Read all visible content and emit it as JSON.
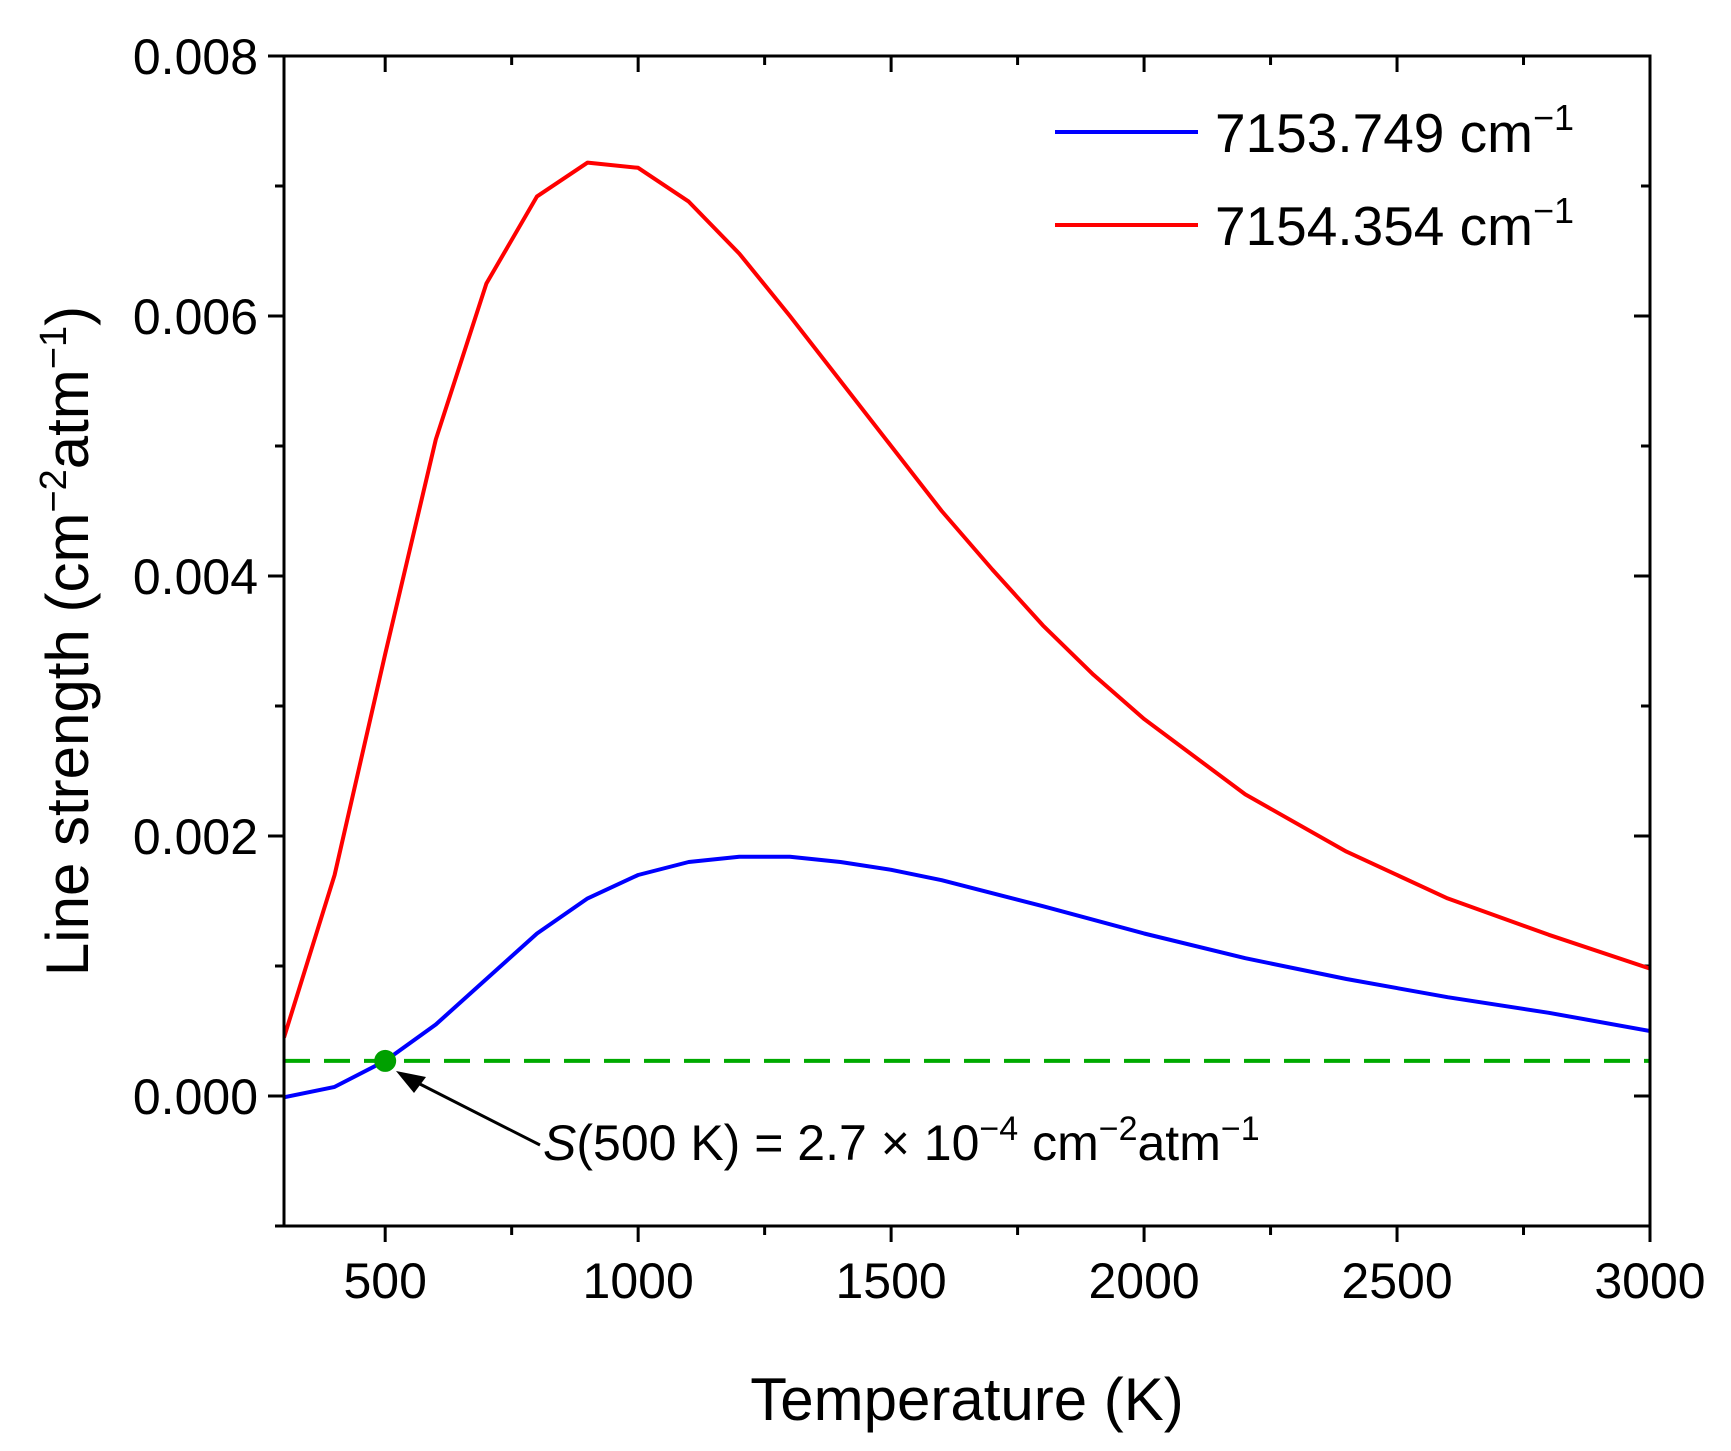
{
  "chart_data": {
    "type": "line",
    "title": "",
    "xlabel": "Temperature (K)",
    "ylabel": {
      "pre": "Line strength (cm",
      "sup1": "−2",
      "mid": "atm",
      "sup2": "−1",
      "post": ")"
    },
    "xlim": [
      300,
      3000
    ],
    "ylim": [
      -0.001,
      0.008
    ],
    "xticks": [
      500,
      1000,
      1500,
      2000,
      2500,
      3000
    ],
    "xtick_labels": [
      "500",
      "1000",
      "1500",
      "2000",
      "2500",
      "3000"
    ],
    "yticks": [
      0.0,
      0.002,
      0.004,
      0.006,
      0.008
    ],
    "ytick_labels": [
      "0.000",
      "0.002",
      "0.004",
      "0.006",
      "0.008"
    ],
    "grid": false,
    "legend_position": "top-right",
    "series": [
      {
        "name": "7153.749 cm",
        "name_sup": "−1",
        "color": "#0000ff",
        "x": [
          300,
          400,
          500,
          600,
          700,
          800,
          900,
          1000,
          1100,
          1200,
          1300,
          1400,
          1500,
          1600,
          1800,
          2000,
          2200,
          2400,
          2600,
          2800,
          3000
        ],
        "y": [
          -1e-05,
          7e-05,
          0.00027,
          0.00055,
          0.0009,
          0.00125,
          0.00152,
          0.0017,
          0.0018,
          0.00184,
          0.00184,
          0.0018,
          0.00174,
          0.00166,
          0.00146,
          0.00125,
          0.00106,
          0.0009,
          0.00076,
          0.00064,
          0.0005
        ]
      },
      {
        "name": "7154.354 cm",
        "name_sup": "−1",
        "color": "#ff0000",
        "x": [
          300,
          400,
          500,
          600,
          700,
          800,
          900,
          1000,
          1100,
          1200,
          1300,
          1400,
          1500,
          1600,
          1700,
          1800,
          1900,
          2000,
          2200,
          2400,
          2600,
          2800,
          3000
        ],
        "y": [
          0.00045,
          0.0017,
          0.0034,
          0.00505,
          0.00625,
          0.00692,
          0.00718,
          0.00714,
          0.00688,
          0.00648,
          0.006,
          0.0055,
          0.005,
          0.0045,
          0.00405,
          0.00362,
          0.00324,
          0.0029,
          0.00232,
          0.00188,
          0.00152,
          0.00124,
          0.00098
        ]
      }
    ],
    "reference_line": {
      "y": 0.00027,
      "color": "#00aa00",
      "style": "dashed"
    },
    "marker": {
      "x": 500,
      "y": 0.00027,
      "color": "#00a000"
    },
    "annotation": {
      "italic": "S",
      "text_a": "(500 K) = 2.7 × 10",
      "sup_a": "−4",
      "text_b": " cm",
      "sup_b": "−2",
      "text_c": "atm",
      "sup_c": "−1"
    }
  }
}
